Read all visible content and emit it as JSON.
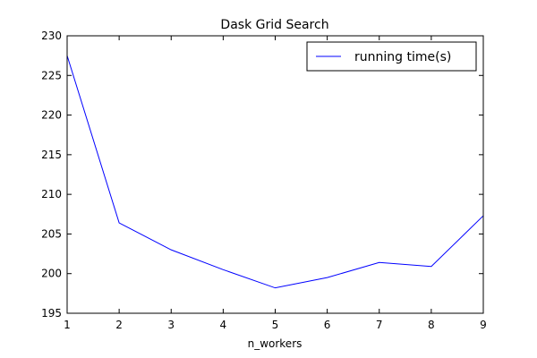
{
  "chart_data": {
    "type": "line",
    "title": "Dask Grid Search",
    "xlabel": "n_workers",
    "ylabel": "",
    "xlim": [
      1,
      9
    ],
    "ylim": [
      195,
      230
    ],
    "xticks": [
      1,
      2,
      3,
      4,
      5,
      6,
      7,
      8,
      9
    ],
    "yticks": [
      195,
      200,
      205,
      210,
      215,
      220,
      225,
      230
    ],
    "grid": false,
    "legend_position": "top-right",
    "series": [
      {
        "name": "running time(s)",
        "color": "#0000ff",
        "x": [
          1,
          2,
          3,
          4,
          5,
          6,
          7,
          8,
          9
        ],
        "y": [
          227.5,
          206.4,
          203.0,
          200.5,
          198.2,
          199.5,
          201.4,
          200.9,
          207.3
        ]
      }
    ]
  }
}
